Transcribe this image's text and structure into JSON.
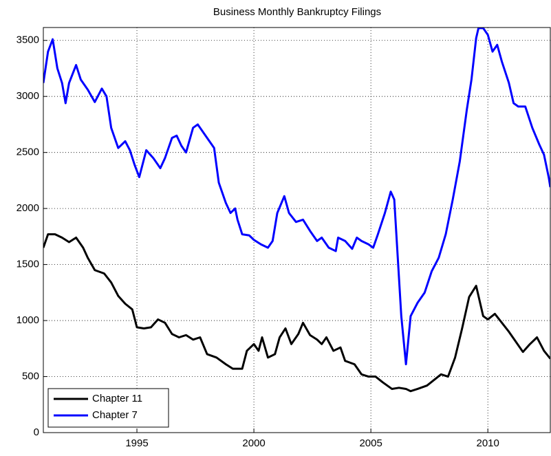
{
  "chart_data": {
    "type": "line",
    "title": "Business Monthly Bankruptcy Filings",
    "xlim": [
      1991,
      2012.67
    ],
    "xticks": [
      1995,
      2000,
      2005,
      2010
    ],
    "ylim": [
      0,
      3615
    ],
    "yticks": [
      0,
      500,
      1000,
      1500,
      2000,
      2500,
      3000,
      3500
    ],
    "grid": true,
    "legend": "lower-left",
    "series": [
      {
        "name": "Chapter 11",
        "color": "#000000",
        "x": [
          1991.0,
          1991.2,
          1991.5,
          1991.8,
          1992.1,
          1992.4,
          1992.7,
          1992.9,
          1993.2,
          1993.6,
          1993.9,
          1994.2,
          1994.5,
          1994.8,
          1995.0,
          1995.3,
          1995.6,
          1995.9,
          1996.2,
          1996.5,
          1996.8,
          1997.1,
          1997.4,
          1997.7,
          1998.0,
          1998.4,
          1998.8,
          1999.1,
          1999.5,
          1999.7,
          2000.0,
          2000.2,
          2000.35,
          2000.6,
          2000.9,
          2001.1,
          2001.35,
          2001.6,
          2001.9,
          2002.1,
          2002.4,
          2002.7,
          2002.9,
          2003.1,
          2003.4,
          2003.7,
          2003.9,
          2004.3,
          2004.6,
          2004.9,
          2005.2,
          2005.5,
          2005.9,
          2006.2,
          2006.5,
          2006.7,
          2007.0,
          2007.4,
          2007.7,
          2008.0,
          2008.3,
          2008.6,
          2008.9,
          2009.2,
          2009.5,
          2009.8,
          2010.0,
          2010.3,
          2010.6,
          2010.9,
          2011.2,
          2011.5,
          2011.8,
          2012.1,
          2012.4,
          2012.67
        ],
        "values": [
          1650,
          1770,
          1770,
          1740,
          1700,
          1740,
          1650,
          1560,
          1450,
          1420,
          1340,
          1220,
          1150,
          1100,
          940,
          930,
          940,
          1010,
          980,
          880,
          850,
          870,
          830,
          850,
          700,
          670,
          610,
          570,
          570,
          730,
          790,
          730,
          850,
          670,
          700,
          850,
          930,
          790,
          880,
          980,
          870,
          830,
          790,
          850,
          730,
          760,
          640,
          610,
          520,
          500,
          500,
          450,
          390,
          400,
          390,
          370,
          390,
          420,
          470,
          520,
          500,
          670,
          930,
          1210,
          1310,
          1040,
          1010,
          1060,
          980,
          900,
          810,
          720,
          790,
          850,
          730,
          660
        ]
      },
      {
        "name": "Chapter 7",
        "color": "#0000ff",
        "x": [
          1991.0,
          1991.2,
          1991.4,
          1991.6,
          1991.8,
          1991.95,
          1992.1,
          1992.4,
          1992.6,
          1992.9,
          1993.2,
          1993.5,
          1993.7,
          1993.9,
          1994.2,
          1994.5,
          1994.7,
          1994.9,
          1995.1,
          1995.4,
          1995.7,
          1996.0,
          1996.2,
          1996.5,
          1996.7,
          1996.9,
          1997.1,
          1997.4,
          1997.6,
          1997.9,
          1998.1,
          1998.3,
          1998.5,
          1998.8,
          1999.0,
          1999.2,
          1999.3,
          1999.5,
          1999.8,
          2000.0,
          2000.3,
          2000.6,
          2000.8,
          2001.0,
          2001.3,
          2001.5,
          2001.8,
          2002.1,
          2002.4,
          2002.7,
          2002.9,
          2003.2,
          2003.5,
          2003.6,
          2003.9,
          2004.2,
          2004.4,
          2004.6,
          2004.9,
          2005.1,
          2005.3,
          2005.6,
          2005.85,
          2006.0,
          2006.3,
          2006.5,
          2006.7,
          2007.0,
          2007.3,
          2007.6,
          2007.9,
          2008.2,
          2008.5,
          2008.8,
          2009.1,
          2009.3,
          2009.5,
          2009.6,
          2009.8,
          2010.0,
          2010.2,
          2010.4,
          2010.6,
          2010.9,
          2011.1,
          2011.3,
          2011.6,
          2011.9,
          2012.2,
          2012.4,
          2012.6,
          2012.67
        ],
        "values": [
          3120,
          3400,
          3510,
          3250,
          3120,
          2940,
          3120,
          3280,
          3150,
          3060,
          2950,
          3070,
          3000,
          2720,
          2540,
          2600,
          2520,
          2390,
          2280,
          2520,
          2450,
          2360,
          2450,
          2630,
          2650,
          2560,
          2500,
          2720,
          2750,
          2660,
          2600,
          2540,
          2230,
          2050,
          1960,
          2000,
          1900,
          1770,
          1760,
          1720,
          1680,
          1650,
          1710,
          1960,
          2110,
          1960,
          1880,
          1900,
          1800,
          1710,
          1740,
          1650,
          1620,
          1740,
          1710,
          1640,
          1740,
          1710,
          1680,
          1650,
          1770,
          1960,
          2150,
          2080,
          1040,
          610,
          1040,
          1160,
          1250,
          1440,
          1560,
          1770,
          2080,
          2420,
          2880,
          3150,
          3520,
          3610,
          3610,
          3550,
          3400,
          3460,
          3310,
          3120,
          2940,
          2910,
          2910,
          2720,
          2570,
          2480,
          2280,
          2190
        ]
      }
    ]
  }
}
